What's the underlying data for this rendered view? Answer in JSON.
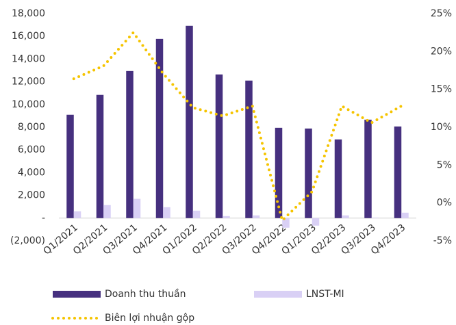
{
  "chart_data": {
    "type": "bar-line",
    "categories": [
      "Q1/2021",
      "Q2/2021",
      "Q3/2021",
      "Q4/2021",
      "Q1/2022",
      "Q2/2022",
      "Q3/2022",
      "Q4/2022",
      "Q1/2023",
      "Q2/2023",
      "Q3/2023",
      "Q4/2023"
    ],
    "series": [
      {
        "name": "Doanh thu thuần",
        "type": "bar",
        "color": "#46307f",
        "values": [
          9100,
          10850,
          12950,
          15780,
          16930,
          12650,
          12110,
          7950,
          7890,
          6930,
          8670,
          8070
        ]
      },
      {
        "name": "LNST-MI",
        "type": "bar",
        "color": "#d9d0f5",
        "values": [
          600,
          1150,
          1700,
          960,
          660,
          180,
          240,
          -840,
          -660,
          240,
          50,
          480
        ]
      },
      {
        "name": "Biên lợi nhuận gộp",
        "type": "line",
        "axis": "y2",
        "color": "#f5c400",
        "values": [
          16.4,
          18.1,
          22.5,
          17.1,
          12.6,
          11.5,
          12.8,
          -2.3,
          1.5,
          12.8,
          10.6,
          12.8
        ]
      }
    ],
    "ylim": [
      -2000,
      18000
    ],
    "yticks": [
      {
        "value": -2000,
        "label": "(2,000)"
      },
      {
        "value": 0,
        "label": "-"
      },
      {
        "value": 2000,
        "label": "2,000"
      },
      {
        "value": 4000,
        "label": "4,000"
      },
      {
        "value": 6000,
        "label": "6,000"
      },
      {
        "value": 8000,
        "label": "8,000"
      },
      {
        "value": 10000,
        "label": "10,000"
      },
      {
        "value": 12000,
        "label": "12,000"
      },
      {
        "value": 14000,
        "label": "14,000"
      },
      {
        "value": 16000,
        "label": "16,000"
      },
      {
        "value": 18000,
        "label": "18,000"
      }
    ],
    "y2lim": [
      -5,
      25
    ],
    "y2ticks": [
      {
        "value": -5,
        "label": "-5%"
      },
      {
        "value": 0,
        "label": "0%"
      },
      {
        "value": 5,
        "label": "5%"
      },
      {
        "value": 10,
        "label": "10%"
      },
      {
        "value": 15,
        "label": "15%"
      },
      {
        "value": 20,
        "label": "20%"
      },
      {
        "value": 25,
        "label": "25%"
      }
    ],
    "legend": "bottom"
  }
}
